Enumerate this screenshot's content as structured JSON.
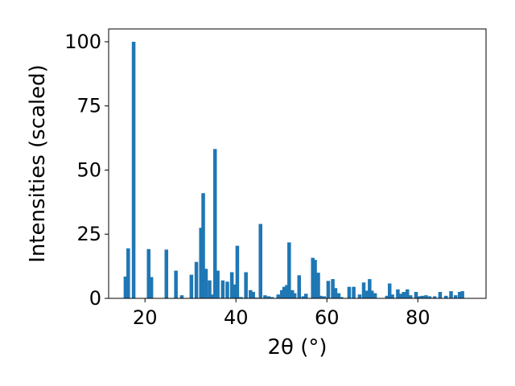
{
  "chart_data": {
    "type": "bar",
    "xlabel": "2θ (°)",
    "ylabel": "Intensities (scaled)",
    "xlim": [
      12,
      95
    ],
    "ylim": [
      0,
      105
    ],
    "x_ticks": [
      20,
      40,
      60,
      80
    ],
    "y_ticks": [
      0,
      25,
      50,
      75,
      100
    ],
    "x_tick_labels": [
      "20",
      "40",
      "60",
      "80"
    ],
    "y_tick_labels": [
      "0",
      "25",
      "50",
      "75",
      "100"
    ],
    "bar_color": "#1f77b4",
    "bar_width": 0.8,
    "grid": false,
    "x": [
      15.7,
      16.3,
      17.5,
      20.8,
      21.4,
      24.7,
      26.8,
      28.1,
      30.2,
      31.3,
      32.3,
      32.8,
      33.4,
      34.2,
      34.7,
      35.4,
      36.0,
      37.1,
      38.1,
      39.1,
      39.7,
      40.3,
      41.1,
      42.2,
      43.2,
      43.8,
      44.4,
      45.4,
      46.4,
      47.2,
      47.9,
      49.3,
      50.1,
      50.6,
      51.2,
      51.7,
      52.4,
      52.9,
      53.9,
      54.8,
      55.4,
      56.9,
      57.4,
      58.1,
      58.6,
      59.4,
      60.3,
      61.3,
      61.9,
      62.6,
      63.2,
      64.9,
      65.9,
      67.2,
      68.1,
      68.7,
      69.4,
      69.9,
      70.6,
      73.2,
      73.8,
      74.4,
      75.6,
      76.2,
      76.9,
      77.7,
      78.4,
      79.6,
      80.3,
      81.0,
      81.8,
      82.6,
      83.7,
      84.9,
      86.2,
      87.3,
      88.3,
      89.2,
      89.8
    ],
    "values": [
      8.5,
      19.5,
      100,
      19.2,
      8.3,
      19.0,
      10.8,
      1.2,
      9.2,
      14.2,
      27.5,
      41.0,
      11.5,
      7.0,
      1.5,
      58.2,
      10.8,
      7.0,
      6.5,
      10.2,
      5.4,
      20.5,
      0.5,
      10.2,
      3.2,
      2.5,
      0.3,
      29.0,
      1.2,
      0.8,
      0.5,
      1.5,
      3.2,
      4.5,
      5.2,
      21.8,
      3.2,
      2.0,
      9.0,
      0.8,
      1.8,
      15.8,
      15.0,
      10.0,
      1.0,
      0.8,
      6.8,
      7.5,
      4.0,
      2.0,
      0.5,
      4.5,
      4.5,
      1.5,
      6.2,
      3.0,
      7.5,
      3.0,
      2.0,
      1.0,
      5.8,
      1.5,
      3.5,
      1.8,
      2.5,
      3.5,
      1.2,
      2.5,
      0.8,
      1.0,
      1.2,
      0.8,
      0.8,
      2.5,
      1.0,
      2.8,
      1.2,
      2.5,
      2.8
    ]
  }
}
